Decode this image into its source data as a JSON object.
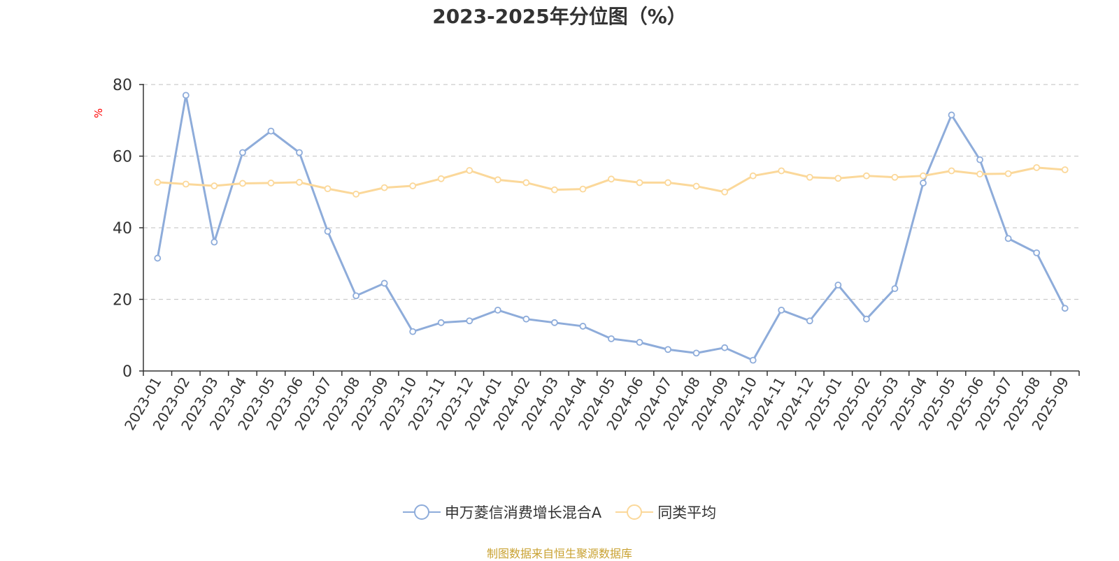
{
  "chart_data": {
    "type": "line",
    "title": "2023-2025年分位图（%）",
    "ylabel": "%",
    "ylim": [
      0,
      80
    ],
    "yticks": [
      0,
      20,
      40,
      60,
      80
    ],
    "grid": true,
    "legend_position": "bottom-center",
    "categories": [
      "2023-01",
      "2023-02",
      "2023-03",
      "2023-04",
      "2023-05",
      "2023-06",
      "2023-07",
      "2023-08",
      "2023-09",
      "2023-10",
      "2023-11",
      "2023-12",
      "2024-01",
      "2024-02",
      "2024-03",
      "2024-04",
      "2024-05",
      "2024-06",
      "2024-07",
      "2024-08",
      "2024-09",
      "2024-10",
      "2024-11",
      "2024-12",
      "2025-01",
      "2025-02",
      "2025-03",
      "2025-04",
      "2025-05",
      "2025-06",
      "2025-07",
      "2025-08",
      "2025-09"
    ],
    "series": [
      {
        "name": "申万菱信消费增长混合A",
        "color": "#8eacda",
        "values": [
          31.5,
          77,
          36,
          61,
          67,
          61,
          39,
          21,
          24.5,
          11,
          13.5,
          14,
          17,
          14.5,
          13.5,
          12.5,
          9,
          8,
          6,
          5,
          6.5,
          3,
          17,
          14,
          24,
          14.5,
          23,
          52.5,
          71.5,
          59,
          37,
          33,
          17.5
        ]
      },
      {
        "name": "同类平均",
        "color": "#fbd89a",
        "values": [
          52.7,
          52.2,
          51.7,
          52.4,
          52.5,
          52.7,
          50.9,
          49.4,
          51.2,
          51.7,
          53.7,
          56,
          53.4,
          52.6,
          50.6,
          50.8,
          53.6,
          52.6,
          52.6,
          51.6,
          50,
          54.5,
          55.9,
          54.1,
          53.8,
          54.5,
          54.1,
          54.5,
          55.9,
          55,
          55.1,
          56.8,
          56.2
        ]
      }
    ]
  },
  "footer": {
    "source": "制图数据来自恒生聚源数据库"
  }
}
